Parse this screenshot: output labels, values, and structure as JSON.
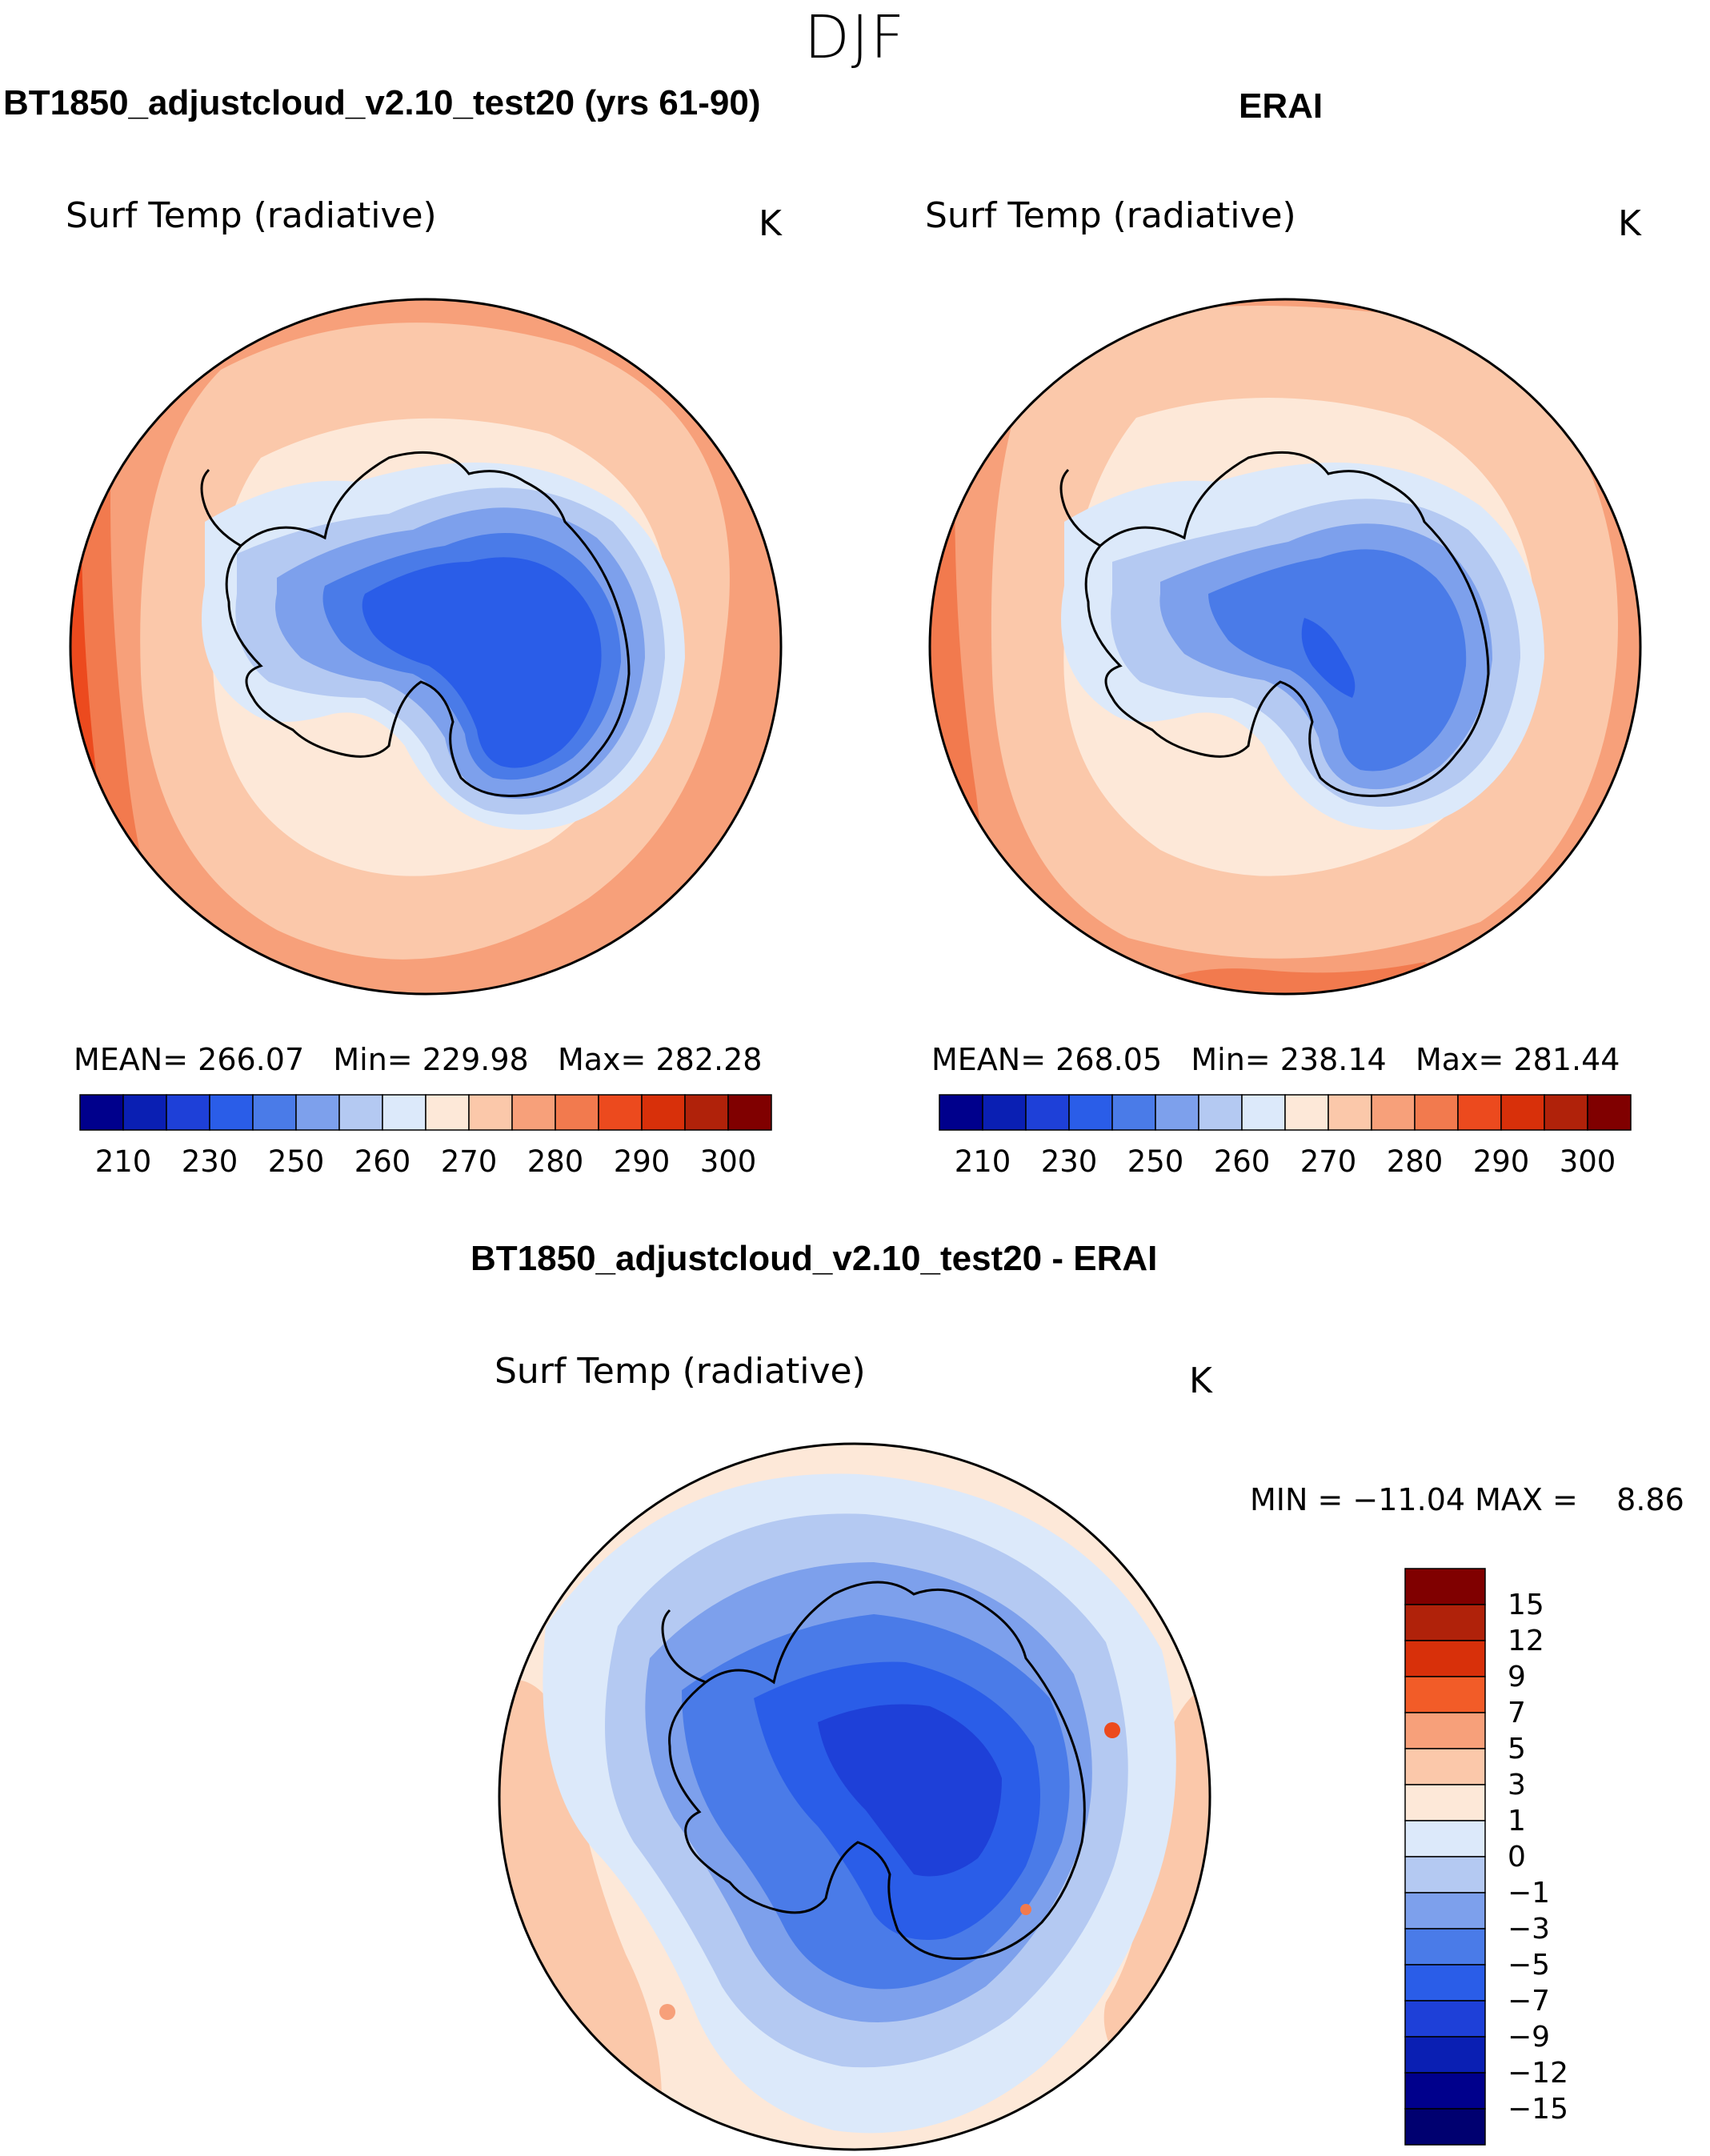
{
  "figure": {
    "season": "DJF",
    "diff_title": "BT1850_adjustcloud_v2.10_test20 - ERAI",
    "diff_panel": {
      "variable": "Surf Temp (radiative)",
      "units": "K",
      "stats_text": "MIN = −11.04 MAX =    8.86"
    }
  },
  "panels": [
    {
      "title": "BT1850_adjustcloud_v2.10_test20 (yrs 61-90)",
      "variable": "Surf Temp (radiative)",
      "units": "K",
      "mean_label": "MEAN=",
      "mean": "266.07",
      "min_label": "Min=",
      "min": "229.98",
      "max_label": "Max=",
      "max": "282.28"
    },
    {
      "title": "ERAI",
      "variable": "Surf Temp (radiative)",
      "units": "K",
      "mean_label": "MEAN=",
      "mean": "268.05",
      "min_label": "Min=",
      "min": "238.14",
      "max_label": "Max=",
      "max": "281.44"
    }
  ],
  "chart_data": [
    {
      "type": "heatmap",
      "projection": "south-polar-stereographic",
      "title": "BT1850_adjustcloud_v2.10_test20 (yrs 61-90)",
      "variable": "Surf Temp (radiative)",
      "units": "K",
      "stats": {
        "mean": 266.07,
        "min": 229.98,
        "max": 282.28
      },
      "colorbar": {
        "orientation": "horizontal",
        "tick_labels": [
          "210",
          "230",
          "250",
          "260",
          "270",
          "280",
          "290",
          "300"
        ],
        "colors": [
          "#00008c",
          "#0a1fb3",
          "#1e40d8",
          "#2a5de8",
          "#4a7be8",
          "#7da0ec",
          "#b4c9f2",
          "#dce9fa",
          "#fde8d8",
          "#fbc8aa",
          "#f7a07a",
          "#f27a4e",
          "#ec4a1e",
          "#d8300a",
          "#b0220a",
          "#800000"
        ]
      }
    },
    {
      "type": "heatmap",
      "projection": "south-polar-stereographic",
      "title": "ERAI",
      "variable": "Surf Temp (radiative)",
      "units": "K",
      "stats": {
        "mean": 268.05,
        "min": 238.14,
        "max": 281.44
      },
      "colorbar": {
        "orientation": "horizontal",
        "tick_labels": [
          "210",
          "230",
          "250",
          "260",
          "270",
          "280",
          "290",
          "300"
        ],
        "colors": [
          "#00008c",
          "#0a1fb3",
          "#1e40d8",
          "#2a5de8",
          "#4a7be8",
          "#7da0ec",
          "#b4c9f2",
          "#dce9fa",
          "#fde8d8",
          "#fbc8aa",
          "#f7a07a",
          "#f27a4e",
          "#ec4a1e",
          "#d8300a",
          "#b0220a",
          "#800000"
        ]
      }
    },
    {
      "type": "heatmap",
      "projection": "south-polar-stereographic",
      "title": "BT1850_adjustcloud_v2.10_test20 - ERAI",
      "variable": "Surf Temp (radiative)",
      "units": "K",
      "stats": {
        "min": -11.04,
        "max": 8.86
      },
      "colorbar": {
        "orientation": "vertical",
        "tick_labels": [
          "15",
          "12",
          "9",
          "7",
          "5",
          "3",
          "1",
          "0",
          "−1",
          "−3",
          "−5",
          "−7",
          "−9",
          "−12",
          "−15"
        ],
        "colors": [
          "#800000",
          "#b0220a",
          "#d8300a",
          "#f25c28",
          "#f7a07a",
          "#fbc8aa",
          "#fde8d8",
          "#dce9fa",
          "#b4c9f2",
          "#7da0ec",
          "#4a7be8",
          "#2a5de8",
          "#1e40d8",
          "#0a1fb3",
          "#00008c",
          "#000070"
        ]
      }
    }
  ]
}
